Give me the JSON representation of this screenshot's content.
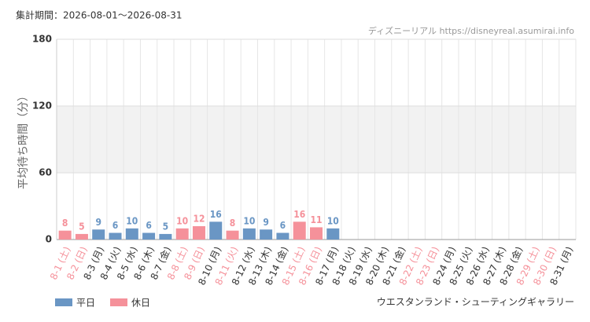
{
  "chart_data": {
    "type": "bar",
    "period": "集計期間：2026-08-01～2026-08-31",
    "source": "ディズニーリアル https://disneyreal.asumirai.info",
    "ylabel": "平均待ち時間（分）",
    "attraction": "ウエスタンランド・シューティングギャラリー",
    "categories": [
      "8-1 (土)",
      "8-2 (日)",
      "8-3 (月)",
      "8-4 (火)",
      "8-5 (水)",
      "8-6 (木)",
      "8-7 (金)",
      "8-8 (土)",
      "8-9 (日)",
      "8-10 (月)",
      "8-11 (火)",
      "8-12 (水)",
      "8-13 (木)",
      "8-14 (金)",
      "8-15 (土)",
      "8-16 (日)",
      "8-17 (月)",
      "8-18 (火)",
      "8-19 (水)",
      "8-20 (木)",
      "8-21 (金)",
      "8-22 (土)",
      "8-23 (日)",
      "8-24 (月)",
      "8-25 (火)",
      "8-26 (水)",
      "8-27 (木)",
      "8-28 (金)",
      "8-29 (土)",
      "8-30 (日)",
      "8-31 (月)"
    ],
    "category_label_colors": [
      "#f5919a",
      "#f5919a",
      "#333333",
      "#333333",
      "#333333",
      "#333333",
      "#333333",
      "#f5919a",
      "#f5919a",
      "#333333",
      "#f5919a",
      "#333333",
      "#333333",
      "#333333",
      "#f5919a",
      "#f5919a",
      "#333333",
      "#333333",
      "#333333",
      "#333333",
      "#333333",
      "#f5919a",
      "#f5919a",
      "#333333",
      "#333333",
      "#333333",
      "#333333",
      "#333333",
      "#f5919a",
      "#f5919a",
      "#333333"
    ],
    "series": [
      {
        "name": "平日",
        "color": "#6a96c4",
        "values": [
          null,
          null,
          9,
          6,
          10,
          6,
          5,
          null,
          null,
          16,
          null,
          10,
          9,
          6,
          null,
          null,
          10,
          null,
          null,
          null,
          null,
          null,
          null,
          null,
          null,
          null,
          null,
          null,
          null,
          null,
          null
        ]
      },
      {
        "name": "休日",
        "color": "#f5919a",
        "values": [
          8,
          5,
          null,
          null,
          null,
          null,
          null,
          10,
          12,
          null,
          8,
          null,
          null,
          null,
          16,
          11,
          null,
          null,
          null,
          null,
          null,
          null,
          null,
          null,
          null,
          null,
          null,
          null,
          null,
          null,
          null
        ]
      }
    ],
    "ylim": [
      0,
      180
    ],
    "yticks": [
      0,
      60,
      120,
      180
    ],
    "grid": true
  }
}
